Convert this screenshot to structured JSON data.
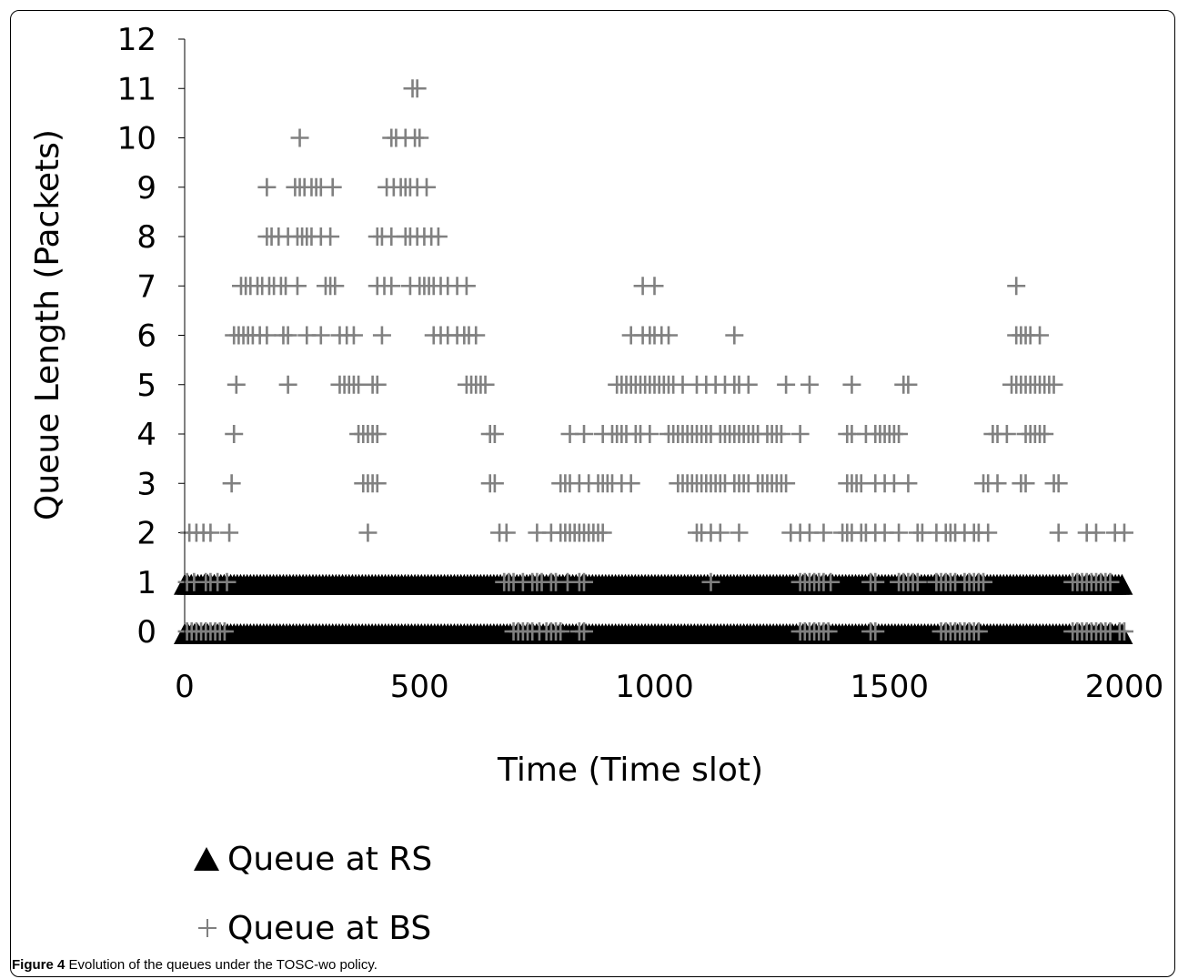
{
  "caption": {
    "label": "Figure 4",
    "text": "Evolution of the queues under the TOSC-wo policy."
  },
  "chart_data": {
    "type": "scatter",
    "xlabel": "Time (Time slot)",
    "ylabel": "Queue Length (Packets)",
    "xlim": [
      0,
      2000
    ],
    "ylim": [
      0,
      12
    ],
    "xticks": [
      "0",
      "500",
      "1000",
      "1500",
      "2000"
    ],
    "yticks": [
      "0",
      "1",
      "2",
      "3",
      "4",
      "5",
      "6",
      "7",
      "8",
      "9",
      "10",
      "11",
      "12"
    ],
    "grid": false,
    "legend_position": "bottom-left",
    "series": [
      {
        "name": "Queue at RS",
        "marker": "triangle",
        "color": "#000000",
        "points": [
          {
            "y": 0,
            "x_ranges": [
              [
                0,
                2000
              ]
            ]
          },
          {
            "y": 1,
            "x_ranges": [
              [
                0,
                2000
              ]
            ]
          }
        ]
      },
      {
        "name": "Queue at BS",
        "marker": "plus",
        "color": "#808080",
        "clusters": [
          {
            "y": 0,
            "x": [
              5,
              15,
              25,
              35,
              45,
              55,
              65,
              75,
              85,
              700,
              710,
              720,
              730,
              740,
              755,
              770,
              780,
              790,
              800,
              840,
              850,
              1310,
              1320,
              1330,
              1340,
              1350,
              1360,
              1370,
              1460,
              1470,
              1610,
              1620,
              1630,
              1640,
              1650,
              1660,
              1670,
              1680,
              1690,
              1890,
              1900,
              1910,
              1920,
              1930,
              1940,
              1950,
              1960,
              1970,
              1990,
              2000
            ]
          },
          {
            "y": 1,
            "x": [
              5,
              20,
              45,
              55,
              70,
              90,
              680,
              690,
              700,
              720,
              740,
              750,
              760,
              780,
              790,
              815,
              840,
              850,
              1120,
              1310,
              1320,
              1330,
              1340,
              1350,
              1360,
              1375,
              1460,
              1470,
              1520,
              1530,
              1540,
              1550,
              1560,
              1600,
              1610,
              1620,
              1630,
              1640,
              1660,
              1670,
              1680,
              1690,
              1700,
              1890,
              1900,
              1910,
              1920,
              1930,
              1940,
              1950,
              1960,
              1970
            ]
          },
          {
            "y": 2,
            "x": [
              10,
              25,
              40,
              55,
              95,
              390,
              670,
              685,
              750,
              780,
              800,
              810,
              820,
              830,
              840,
              850,
              860,
              870,
              880,
              890,
              1090,
              1100,
              1120,
              1140,
              1180,
              1290,
              1310,
              1330,
              1360,
              1400,
              1410,
              1420,
              1440,
              1450,
              1470,
              1490,
              1520,
              1560,
              1570,
              1600,
              1620,
              1630,
              1640,
              1660,
              1680,
              1690,
              1710,
              1860,
              1920,
              1940,
              1980,
              2000
            ]
          },
          {
            "y": 3,
            "x": [
              100,
              380,
              390,
              400,
              410,
              650,
              660,
              800,
              810,
              820,
              840,
              860,
              880,
              890,
              900,
              910,
              930,
              950,
              1050,
              1060,
              1070,
              1080,
              1090,
              1100,
              1110,
              1120,
              1130,
              1140,
              1150,
              1170,
              1180,
              1190,
              1200,
              1220,
              1230,
              1240,
              1250,
              1260,
              1270,
              1280,
              1410,
              1420,
              1430,
              1440,
              1470,
              1490,
              1510,
              1540,
              1700,
              1710,
              1730,
              1780,
              1790,
              1850,
              1860
            ]
          },
          {
            "y": 4,
            "x": [
              105,
              370,
              380,
              390,
              400,
              410,
              650,
              660,
              820,
              850,
              890,
              910,
              920,
              930,
              940,
              960,
              970,
              990,
              1030,
              1040,
              1050,
              1060,
              1070,
              1080,
              1090,
              1100,
              1110,
              1120,
              1140,
              1150,
              1160,
              1170,
              1180,
              1190,
              1200,
              1210,
              1220,
              1240,
              1250,
              1260,
              1270,
              1310,
              1410,
              1420,
              1450,
              1470,
              1480,
              1490,
              1500,
              1510,
              1520,
              1720,
              1730,
              1750,
              1790,
              1800,
              1810,
              1820,
              1830
            ]
          },
          {
            "y": 5,
            "x": [
              110,
              220,
              330,
              340,
              350,
              360,
              370,
              400,
              410,
              600,
              610,
              620,
              630,
              640,
              920,
              930,
              940,
              950,
              960,
              970,
              980,
              990,
              1000,
              1010,
              1020,
              1030,
              1040,
              1060,
              1090,
              1110,
              1130,
              1150,
              1170,
              1180,
              1200,
              1280,
              1330,
              1420,
              1530,
              1540,
              1760,
              1770,
              1780,
              1790,
              1800,
              1810,
              1820,
              1830,
              1840,
              1850
            ]
          },
          {
            "y": 6,
            "x": [
              105,
              115,
              125,
              135,
              145,
              160,
              175,
              210,
              220,
              260,
              290,
              330,
              345,
              360,
              420,
              530,
              545,
              560,
              580,
              595,
              605,
              620,
              950,
              975,
              990,
              1000,
              1015,
              1030,
              1170,
              1770,
              1780,
              1790,
              1800,
              1820
            ]
          },
          {
            "y": 7,
            "x": [
              120,
              130,
              140,
              155,
              165,
              180,
              190,
              205,
              215,
              240,
              300,
              310,
              320,
              410,
              425,
              440,
              480,
              500,
              510,
              520,
              530,
              545,
              560,
              580,
              600,
              975,
              1000,
              1770
            ]
          },
          {
            "y": 8,
            "x": [
              175,
              185,
              200,
              220,
              240,
              250,
              260,
              270,
              290,
              310,
              410,
              420,
              440,
              470,
              480,
              495,
              510,
              525,
              540
            ]
          },
          {
            "y": 9,
            "x": [
              175,
              235,
              245,
              255,
              270,
              280,
              290,
              315,
              430,
              445,
              460,
              470,
              480,
              495,
              515
            ]
          },
          {
            "y": 10,
            "x": [
              245,
              440,
              450,
              470,
              490,
              500
            ]
          },
          {
            "y": 11,
            "x": [
              485,
              495
            ]
          }
        ]
      }
    ]
  }
}
